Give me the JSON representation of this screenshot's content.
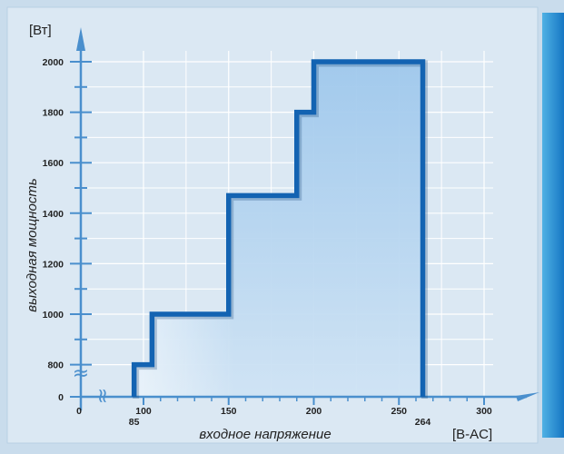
{
  "chart_data": {
    "type": "line",
    "step": true,
    "ylabel": "выходная мощность",
    "xlabel": "входное напряжение",
    "y_unit": "[Вт]",
    "x_unit": "[В-AC]",
    "x_ticks": [
      "0",
      "100",
      "150",
      "200",
      "250",
      "300"
    ],
    "x_extra_ticks": [
      "85",
      "264"
    ],
    "y_ticks": [
      "0",
      "800",
      "1000",
      "1200",
      "1400",
      "1600",
      "1800",
      "2000"
    ],
    "axis_break_symbol": "≈",
    "grid": true,
    "series": [
      {
        "x": [
          85,
          85,
          105,
          105,
          150,
          150,
          190,
          190,
          200,
          200,
          264,
          264
        ],
        "y": [
          0,
          800,
          800,
          1000,
          1000,
          1470,
          1470,
          1800,
          1800,
          2000,
          2000,
          0
        ]
      }
    ]
  },
  "colors": {
    "background": "#c9dcec",
    "plot_background": "#dde9f4",
    "area_fill": "#a9cdec",
    "line": "#1363b2",
    "axis": "#4a8fcd",
    "grid": "#ffffff",
    "side_bar": "#1b8fd4"
  }
}
